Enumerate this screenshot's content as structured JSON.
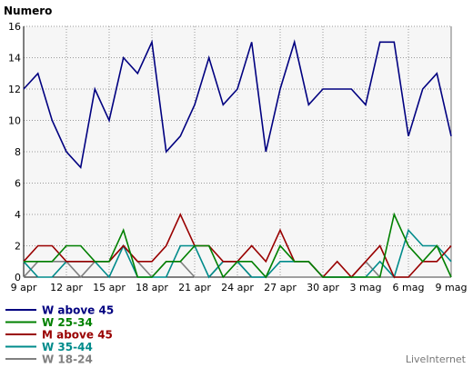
{
  "chart_data": {
    "type": "line",
    "title": "Numero",
    "xlabel": "",
    "ylabel": "",
    "ylim": [
      0,
      16
    ],
    "yticks": [
      "0",
      "2",
      "4",
      "6",
      "8",
      "10",
      "12",
      "14",
      "16"
    ],
    "x": [
      "9 apr",
      "10 apr",
      "11 apr",
      "12 apr",
      "13 apr",
      "14 apr",
      "15 apr",
      "16 apr",
      "17 apr",
      "18 apr",
      "19 apr",
      "20 apr",
      "21 apr",
      "22 apr",
      "23 apr",
      "24 apr",
      "25 apr",
      "26 apr",
      "27 apr",
      "28 apr",
      "29 apr",
      "30 apr",
      "1 mag",
      "2 mag",
      "3 mag",
      "4 mag",
      "5 mag",
      "6 mag",
      "7 mag",
      "8 mag",
      "9 mag"
    ],
    "xtick_labels": [
      "9 apr",
      "12 apr",
      "15 apr",
      "18 apr",
      "21 apr",
      "24 apr",
      "27 apr",
      "30 apr",
      "3 mag",
      "6 mag",
      "9 mag"
    ],
    "grid": true,
    "legend_position": "bottom-left",
    "series": [
      {
        "name": "W above 45",
        "color": "#000080",
        "values": [
          12,
          13,
          10,
          8,
          7,
          12,
          10,
          14,
          13,
          15,
          8,
          9,
          11,
          14,
          11,
          12,
          15,
          8,
          12,
          15,
          11,
          12,
          12,
          12,
          11,
          15,
          15,
          9,
          12,
          13,
          9
        ]
      },
      {
        "name": "W 25-34",
        "color": "#008000",
        "values": [
          1,
          1,
          1,
          2,
          2,
          1,
          1,
          3,
          0,
          0,
          1,
          1,
          2,
          2,
          0,
          1,
          1,
          0,
          2,
          1,
          1,
          0,
          0,
          0,
          0,
          0,
          4,
          2,
          1,
          2,
          0
        ]
      },
      {
        "name": "M above 45",
        "color": "#990000",
        "values": [
          1,
          2,
          2,
          1,
          1,
          1,
          1,
          2,
          1,
          1,
          2,
          4,
          2,
          2,
          1,
          1,
          2,
          1,
          3,
          1,
          1,
          0,
          1,
          0,
          1,
          2,
          0,
          0,
          1,
          1,
          2
        ]
      },
      {
        "name": "W 35-44",
        "color": "#008b8b",
        "values": [
          1,
          0,
          0,
          1,
          1,
          1,
          0,
          2,
          0,
          0,
          0,
          2,
          2,
          0,
          1,
          1,
          0,
          0,
          1,
          1,
          1,
          0,
          0,
          0,
          0,
          1,
          0,
          3,
          2,
          2,
          1
        ]
      },
      {
        "name": "W 18-24",
        "color": "#808080",
        "values": [
          0,
          1,
          1,
          1,
          0,
          1,
          1,
          2,
          1,
          0,
          1,
          1,
          0,
          0,
          1,
          1,
          0,
          0,
          0,
          0,
          0,
          0,
          0,
          0,
          1,
          0,
          0,
          0,
          0,
          0,
          0
        ]
      }
    ]
  },
  "branding": "LiveInternet"
}
